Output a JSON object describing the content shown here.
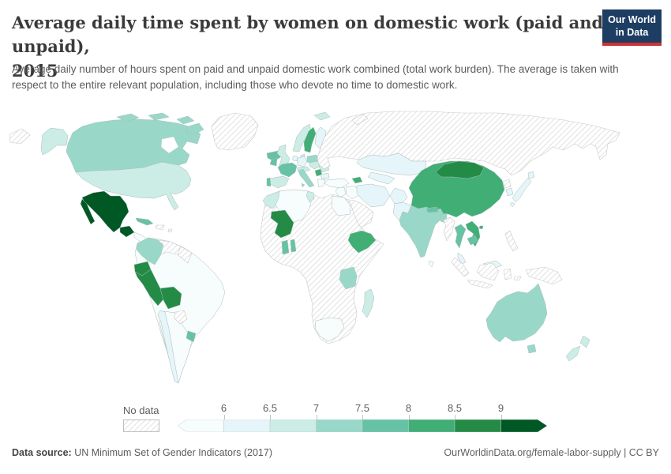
{
  "header": {
    "title_line1": "Average daily time spent by women on domestic work (paid and unpaid),",
    "title_line2": "2015",
    "subtitle": "Average daily number of hours spent on paid and unpaid domestic work combined (total work burden). The average is taken with respect to the entire relevant population, including those who devote no time to domestic work.",
    "logo": {
      "line1": "Our World",
      "line2": "in Data",
      "bg_color": "#1d3d63",
      "accent_color": "#cf3134"
    }
  },
  "legend": {
    "no_data_label": "No data",
    "ticks": [
      "6",
      "6.5",
      "7",
      "7.5",
      "8",
      "8.5",
      "9"
    ]
  },
  "footer": {
    "source_label": "Data source:",
    "source_text": " UN Minimum Set of Gender Indicators (2017)",
    "right_text": "OurWorldinData.org/female-labor-supply | CC BY"
  },
  "chart_data": {
    "type": "heatmap",
    "subtype": "world-choropleth-map",
    "title": "Average daily time spent by women on domestic work (paid and unpaid), 2015",
    "unit": "hours per day",
    "legend_bins": [
      "<6",
      "6-6.5",
      "6.5-7",
      "7-7.5",
      "7.5-8",
      "8-8.5",
      "8.5-9",
      ">9"
    ],
    "palette": [
      "#f7fcfd",
      "#e5f5f9",
      "#ccece6",
      "#99d8c9",
      "#66c2a4",
      "#41ae76",
      "#238b45",
      "#005824"
    ],
    "no_data_style": "diagonal-hatch",
    "countries": {
      "Mexico": ">9",
      "Guatemala": ">9",
      "Peru": "8.5-9",
      "Ecuador": "8.5-9",
      "Bolivia": "8.5-9",
      "Mali": "8.5-9",
      "Mongolia": "8.5-9",
      "Lithuania": "8.5-9",
      "China": "8-8.5",
      "Ethiopia": "8-8.5",
      "Sweden": "8-8.5",
      "Azerbaijan": "8-8.5",
      "Vietnam": "8-8.5",
      "Serbia": "8-8.5",
      "France": "7.5-8",
      "Ireland": "7.5-8",
      "Portugal": "7.5-8",
      "Cuba": "7.5-8",
      "Uruguay": "7.5-8",
      "Thailand": "7.5-8",
      "Cambodia": "7.5-8",
      "Ghana": "7.5-8",
      "Benin": "7.5-8",
      "Iceland": "7.5-8",
      "Nepal": "7.5-8",
      "Panama": "7.5-8",
      "Canada": "7-7.5",
      "Colombia": "7-7.5",
      "India": "7-7.5",
      "Australia": "7-7.5",
      "Tanzania": "7-7.5",
      "Poland": "7-7.5",
      "Italy": "7-7.5",
      "Bangladesh": "7-7.5",
      "United States": "6.5-7",
      "Morocco": "6.5-7",
      "Spain": "6.5-7",
      "Norway": "6.5-7",
      "United Kingdom": "6.5-7",
      "New Zealand": "6.5-7",
      "Madagascar": "6.5-7",
      "Tunisia": "6.5-7",
      "Estonia": "6.5-7",
      "Denmark": "6.5-7",
      "Austria": "6.5-7",
      "Hungary": "6.5-7",
      "Romania": "6.5-7",
      "Chile": "6-6.5",
      "Kazakhstan": "6-6.5",
      "Pakistan": "6-6.5",
      "Iran": "6-6.5",
      "Japan": "6-6.5",
      "South Korea": "6-6.5",
      "Finland": "6-6.5",
      "Germany": "6-6.5",
      "Malaysia": "6-6.5",
      "Afghanistan": "6-6.5",
      "Bulgaria": "6-6.5",
      "Uzbekistan": "6-6.5",
      "Netherlands": "6-6.5",
      "Brazil": "<6",
      "Argentina": "<6",
      "Turkey": "<6",
      "Greece": "<6",
      "Algeria": "<6",
      "Egypt": "<6",
      "South Africa": "<6",
      "Iraq": "<6",
      "Syria": "<6",
      "Sri Lanka": "<6",
      "Central America": "<6",
      "Russia": "No data",
      "Greenland": "No data",
      "Venezuela": "No data",
      "Guyana & Suriname": "No data",
      "Paraguay": "No data",
      "Hispaniola": "No data",
      "Caribbean islands": "No data",
      "Saudi Arabia & Arabian Peninsula": "No data",
      "Myanmar": "No data",
      "Indonesia": "No data",
      "Philippines": "No data",
      "Papua New Guinea": "No data",
      "North Korea": "No data",
      "Most of Africa": "No data"
    }
  }
}
